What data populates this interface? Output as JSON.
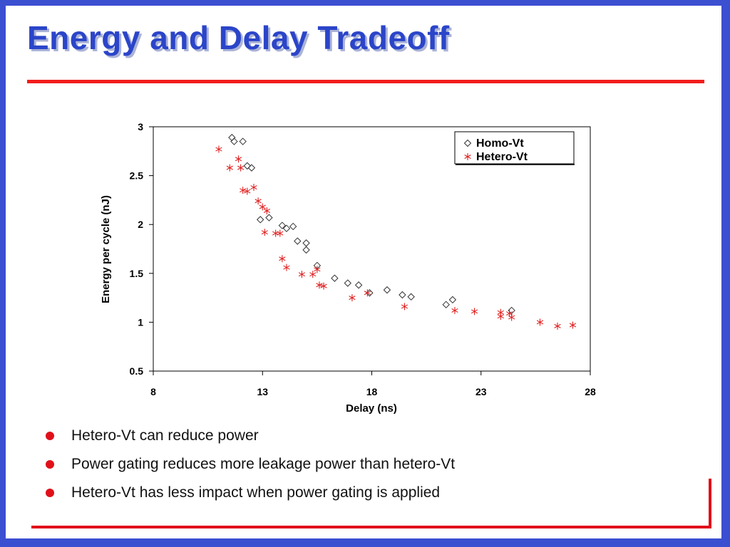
{
  "slide": {
    "title": "Energy and Delay Tradeoff",
    "bullets": [
      "Hetero-Vt can reduce power",
      "Power gating reduces more leakage power than hetero-Vt",
      "Hetero-Vt has less impact when power gating is applied"
    ]
  },
  "colors": {
    "title": "#2b45c9",
    "accent_line": "#f21d1d",
    "bullet": "#e0101a",
    "frame": "#3b4fd1",
    "homo_marker": "#333333",
    "hetero_marker": "#e02020"
  },
  "chart_data": {
    "type": "scatter",
    "xlabel": "Delay (ns)",
    "ylabel": "Energy per cycle (nJ)",
    "xlim": [
      8,
      28
    ],
    "ylim": [
      0.5,
      3
    ],
    "xticks": [
      "8",
      "13",
      "18",
      "23",
      "28"
    ],
    "yticks": [
      "0.5",
      "1",
      "1.5",
      "2",
      "2.5",
      "3"
    ],
    "grid": false,
    "legend": "top-right",
    "series": [
      {
        "name": "Homo-Vt",
        "marker": "diamond",
        "points": [
          [
            11.6,
            2.89
          ],
          [
            11.7,
            2.85
          ],
          [
            12.1,
            2.85
          ],
          [
            12.3,
            2.6
          ],
          [
            12.5,
            2.58
          ],
          [
            12.9,
            2.05
          ],
          [
            13.3,
            2.07
          ],
          [
            13.9,
            1.99
          ],
          [
            14.1,
            1.96
          ],
          [
            14.4,
            1.98
          ],
          [
            14.6,
            1.83
          ],
          [
            15.0,
            1.81
          ],
          [
            15.0,
            1.74
          ],
          [
            15.5,
            1.58
          ],
          [
            16.3,
            1.45
          ],
          [
            16.9,
            1.4
          ],
          [
            17.4,
            1.38
          ],
          [
            17.9,
            1.3
          ],
          [
            18.7,
            1.33
          ],
          [
            19.4,
            1.28
          ],
          [
            19.8,
            1.26
          ],
          [
            21.4,
            1.18
          ],
          [
            21.7,
            1.23
          ],
          [
            24.4,
            1.12
          ]
        ]
      },
      {
        "name": "Hetero-Vt",
        "marker": "asterisk",
        "points": [
          [
            11.0,
            2.77
          ],
          [
            11.5,
            2.58
          ],
          [
            11.9,
            2.67
          ],
          [
            12.0,
            2.58
          ],
          [
            12.1,
            2.35
          ],
          [
            12.3,
            2.34
          ],
          [
            12.6,
            2.38
          ],
          [
            12.8,
            2.24
          ],
          [
            13.0,
            2.18
          ],
          [
            13.2,
            2.14
          ],
          [
            13.1,
            1.92
          ],
          [
            13.6,
            1.91
          ],
          [
            13.8,
            1.91
          ],
          [
            13.9,
            1.65
          ],
          [
            14.1,
            1.56
          ],
          [
            14.8,
            1.49
          ],
          [
            15.3,
            1.49
          ],
          [
            15.5,
            1.54
          ],
          [
            15.6,
            1.38
          ],
          [
            15.8,
            1.37
          ],
          [
            17.1,
            1.25
          ],
          [
            17.8,
            1.3
          ],
          [
            19.5,
            1.16
          ],
          [
            21.8,
            1.12
          ],
          [
            22.7,
            1.11
          ],
          [
            23.9,
            1.1
          ],
          [
            23.9,
            1.06
          ],
          [
            24.3,
            1.09
          ],
          [
            24.4,
            1.05
          ],
          [
            25.7,
            1.0
          ],
          [
            26.5,
            0.96
          ],
          [
            27.2,
            0.97
          ]
        ]
      }
    ]
  }
}
